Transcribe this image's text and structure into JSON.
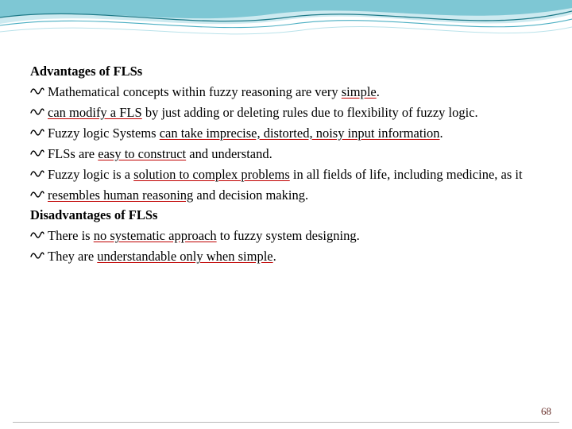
{
  "wave": {
    "fill_light": "#9dd6e0",
    "fill_mid": "#4aaec2",
    "stroke_dark": "#1e7a88",
    "stroke_light": "#b9e2ea"
  },
  "headings": {
    "advantages": "Advantages of FLSs",
    "disadvantages": "Disadvantages of FLSs"
  },
  "bullets": {
    "a1_pre": "Mathematical concepts within fuzzy reasoning are very ",
    "a1_u": "simple",
    "a1_post": ".",
    "a2_u": "can modify a FLS",
    "a2_post": " by just adding or deleting rules due to flexibility of fuzzy logic.",
    "a3_pre": "Fuzzy logic Systems ",
    "a3_u": "can take imprecise, distorted, noisy input information",
    "a3_post": ".",
    "a4_pre": "FLSs are ",
    "a4_u": "easy to construct",
    "a4_post": " and understand.",
    "a5_pre": "Fuzzy logic is a ",
    "a5_u": "solution to complex problems",
    "a5_post": " in all fields of life, including medicine, as it",
    "a6_u": "resembles human reasoning",
    "a6_post": " and decision making.",
    "d1_pre": "There is ",
    "d1_u": "no systematic approach",
    "d1_post": " to fuzzy system designing.",
    "d2_pre": "They are ",
    "d2_u": "understandable only when simple",
    "d2_post": "."
  },
  "page_number": "68",
  "colors": {
    "text": "#000000",
    "underline": "#c00000",
    "page_num": "#6a322d",
    "background": "#ffffff"
  }
}
